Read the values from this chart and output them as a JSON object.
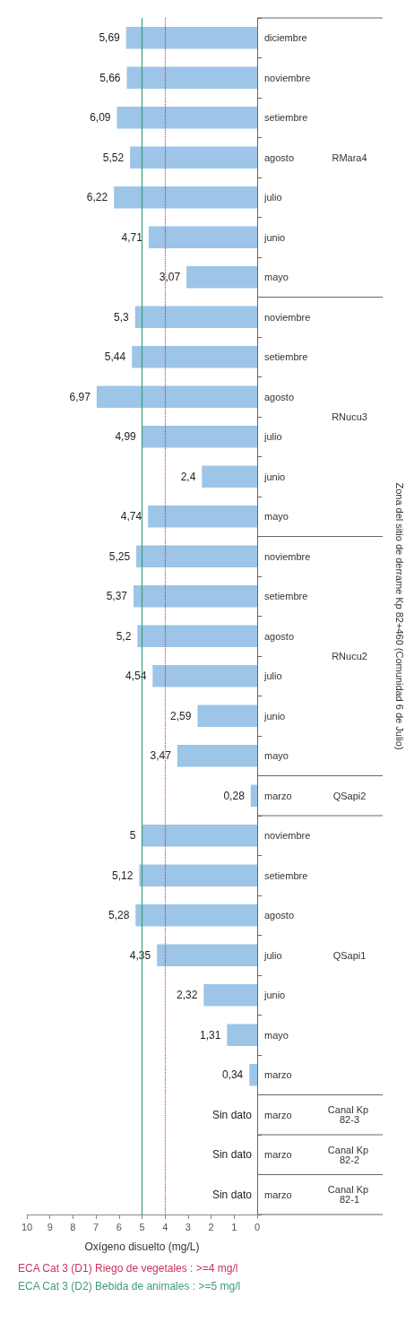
{
  "chart_data": {
    "type": "bar",
    "orientation": "horizontal",
    "xlabel": "Oxígeno disuelto (mg/L)",
    "categories": [
      "diciembre",
      "noviembre",
      "setiembre",
      "agosto",
      "julio",
      "junio",
      "mayo",
      "noviembre",
      "setiembre",
      "agosto",
      "julio",
      "junio",
      "mayo",
      "noviembre",
      "setiembre",
      "agosto",
      "julio",
      "junio",
      "mayo",
      "marzo",
      "noviembre",
      "setiembre",
      "agosto",
      "julio",
      "junio",
      "mayo",
      "marzo",
      "marzo",
      "marzo",
      "marzo"
    ],
    "values": [
      5.69,
      5.66,
      6.09,
      5.52,
      6.22,
      4.71,
      3.07,
      5.3,
      5.44,
      6.97,
      4.99,
      2.4,
      4.74,
      5.25,
      5.37,
      5.2,
      4.54,
      2.59,
      3.47,
      0.28,
      5,
      5.12,
      5.28,
      4.35,
      2.32,
      1.31,
      0.34,
      null,
      null,
      null
    ],
    "value_labels": [
      "5,69",
      "5,66",
      "6,09",
      "5,52",
      "6,22",
      "4,71",
      "3,07",
      "5,3",
      "5,44",
      "6,97",
      "4,99",
      "2,4",
      "4,74",
      "5,25",
      "5,37",
      "5,2",
      "4,54",
      "2,59",
      "3,47",
      "0,28",
      "5",
      "5,12",
      "5,28",
      "4,35",
      "2,32",
      "1,31",
      "0,34",
      "Sin dato",
      "Sin dato",
      "Sin dato"
    ],
    "color": "#9cc5e8",
    "xlim": [
      10,
      0
    ],
    "xticks": [
      0,
      1,
      2,
      3,
      4,
      5,
      6,
      7,
      8,
      9,
      10
    ],
    "grid": false,
    "ref_lines": [
      {
        "axis": "x",
        "value": 4,
        "label": "ECA Cat 3 (D1) Riego de vegetales : >=4 mg/l",
        "color": "#d0305a",
        "line_style": "dotted"
      },
      {
        "axis": "x",
        "value": 5,
        "label": "ECA Cat 3 (D2) Bebida de animales : >=5 mg/l",
        "color": "#3a9d7a",
        "line_style": "solid"
      }
    ],
    "annotations": [
      "RMara4",
      "RNucu3",
      "RNucu2",
      "QSapi2",
      "QSapi1",
      "Canal Kp 82-3",
      "Canal Kp 82-2",
      "Canal Kp 82-1",
      "Zona del sitio de derrame Kp 82+460 (Comunidad 6 de Julio)"
    ]
  }
}
